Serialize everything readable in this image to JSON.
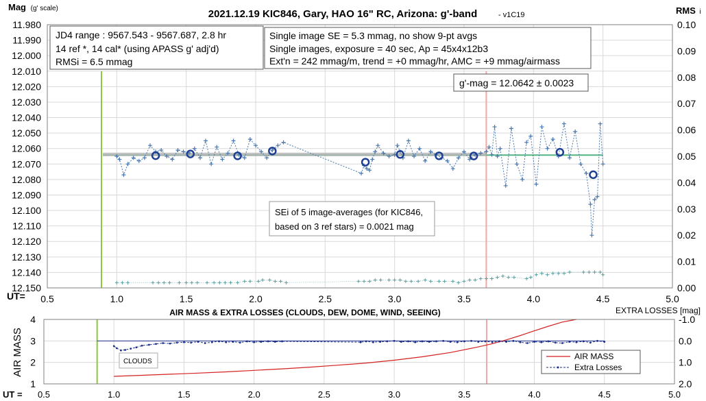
{
  "chart_data": [
    {
      "type": "scatter",
      "title": "2021.12.19 KIC846, Gary, HAO 16\" RC, Arizona: g'-band",
      "version": "- v1C19",
      "ylabel": "Mag",
      "ylabel_suffix": "(g' scale)",
      "y2label": "RMS",
      "y2label_suffix": "i",
      "xlabel": "UT=",
      "xlim": [
        0.5,
        5.0
      ],
      "xticks": [
        "0.5",
        "1.0",
        "1.5",
        "2.0",
        "2.5",
        "3.0",
        "3.5",
        "4.0",
        "4.5",
        "5.0"
      ],
      "ylim": [
        11.98,
        12.15
      ],
      "yticks": [
        "11.980",
        "11.990",
        "12.000",
        "12.010",
        "12.020",
        "12.030",
        "12.040",
        "12.050",
        "12.060",
        "12.070",
        "12.080",
        "12.090",
        "12.100",
        "12.110",
        "12.120",
        "12.130",
        "12.140",
        "12.150"
      ],
      "y2lim": [
        0.1,
        0.0
      ],
      "y2ticks": [
        "0.10",
        "0.09",
        "0.08",
        "0.07",
        "0.06",
        "0.05",
        "0.04",
        "0.03",
        "0.02",
        "0.01",
        "0.00"
      ],
      "info_box_1": [
        "JD4 range : 9567.543 - 9567.687,  2.8  hr",
        "14 ref *, 14 cal* (using APASS g' adj'd)",
        "RMSi = 6.5 mmag"
      ],
      "info_box_2": [
        "Single image SE = 5.3 mmag, no show  9-pt avgs",
        "Single images, exposure = 40 sec, Ap = 45x4x12b3",
        "Ext'n = 242 mmag/m, trend = +0 mmag/hr, AMC = +9 mmag/airmass"
      ],
      "gmag_label": "g'-mag = 12.0642 ± 0.0023",
      "sei_label": [
        "SEi of 5 image-averages (for KIC846,",
        "based on 3 ref stars) = 0.0021 mag"
      ],
      "vertical_markers": [
        {
          "x": 0.89,
          "color": "#8cc63f"
        },
        {
          "x": 3.66,
          "color": "#f4a6a6"
        }
      ],
      "reference_lines": [
        {
          "label": "",
          "y": 12.0642,
          "x_range": [
            0.9,
            4.5
          ],
          "color": "#50b482"
        },
        {
          "label": "",
          "y": 12.0638,
          "x_range": [
            0.9,
            3.66
          ],
          "color": "#b4b4b4"
        }
      ],
      "series": [
        {
          "type": "line-points",
          "color": "#4a78b0",
          "x": [
            1.0,
            1.02,
            1.05,
            1.08,
            1.12,
            1.16,
            1.2,
            1.24,
            1.28,
            1.32,
            1.36,
            1.4,
            1.44,
            1.48,
            1.52,
            1.56,
            1.6,
            1.64,
            1.68,
            1.72,
            1.76,
            1.8,
            1.84,
            1.88,
            1.92,
            1.96,
            2.0,
            2.04,
            2.08,
            2.12,
            2.16,
            2.2,
            2.76,
            2.78,
            2.8,
            2.82,
            2.84,
            2.86,
            2.88,
            2.92,
            2.96,
            3.0,
            3.02,
            3.04,
            3.06,
            3.1,
            3.14,
            3.18,
            3.22,
            3.26,
            3.3,
            3.34,
            3.38,
            3.42,
            3.46,
            3.5,
            3.54,
            3.58,
            3.62,
            3.66,
            3.68,
            3.7,
            3.72,
            3.74,
            3.76,
            3.8,
            3.84,
            3.88,
            3.92,
            3.95,
            3.98,
            4.02,
            4.06,
            4.1,
            4.14,
            4.18,
            4.22,
            4.26,
            4.3,
            4.34,
            4.38,
            4.41,
            4.42,
            4.44,
            4.46,
            4.48,
            4.5
          ],
          "y": [
            12.065,
            12.067,
            12.077,
            12.07,
            12.066,
            12.068,
            12.066,
            12.058,
            12.062,
            12.061,
            12.065,
            12.067,
            12.061,
            12.062,
            12.063,
            12.06,
            12.066,
            12.055,
            12.07,
            12.059,
            12.067,
            12.063,
            12.055,
            12.064,
            12.066,
            12.054,
            12.058,
            12.062,
            12.066,
            12.061,
            12.058,
            12.056,
            12.076,
            12.071,
            12.073,
            12.074,
            12.067,
            12.062,
            12.058,
            12.063,
            12.065,
            12.064,
            12.058,
            12.062,
            12.066,
            12.055,
            12.065,
            12.06,
            12.068,
            12.062,
            12.064,
            12.066,
            12.068,
            12.073,
            12.066,
            12.062,
            12.067,
            12.064,
            12.063,
            12.062,
            12.059,
            12.064,
            12.046,
            12.065,
            12.06,
            12.084,
            12.047,
            12.07,
            12.08,
            12.056,
            12.052,
            12.083,
            12.046,
            12.06,
            12.054,
            12.065,
            12.044,
            12.066,
            12.049,
            12.07,
            12.076,
            12.096,
            12.116,
            12.093,
            12.091,
            12.044,
            12.07
          ]
        },
        {
          "type": "circles",
          "color": "#1c3f94",
          "x": [
            1.28,
            1.53,
            1.87,
            2.12,
            2.79,
            3.04,
            3.32,
            3.57,
            4.19,
            4.43
          ],
          "y": [
            12.0646,
            12.0635,
            12.0647,
            12.0616,
            12.0688,
            12.0638,
            12.0647,
            12.0648,
            12.0624,
            12.0769
          ]
        },
        {
          "type": "rmsi-points",
          "color": "#5a9ea0",
          "x": [
            1.0,
            1.04,
            1.08,
            1.26,
            1.3,
            1.34,
            1.38,
            1.45,
            1.5,
            1.54,
            1.58,
            1.65,
            1.7,
            1.74,
            1.78,
            1.82,
            1.87,
            1.92,
            1.96,
            2.02,
            2.05,
            2.1,
            2.14,
            2.18,
            2.22,
            2.74,
            2.78,
            2.82,
            2.86,
            2.9,
            2.96,
            3.0,
            3.04,
            3.08,
            3.12,
            3.17,
            3.22,
            3.26,
            3.32,
            3.36,
            3.42,
            3.46,
            3.5,
            3.54,
            3.58,
            3.62,
            3.66,
            3.7,
            3.74,
            3.78,
            3.82,
            3.86,
            3.95,
            3.98,
            4.02,
            4.06,
            4.1,
            4.14,
            4.18,
            4.22,
            4.26,
            4.36,
            4.4,
            4.44,
            4.48,
            4.5
          ],
          "y": [
            0.002,
            0.002,
            0.002,
            0.002,
            0.002,
            0.002,
            0.002,
            0.002,
            0.002,
            0.002,
            0.002,
            0.002,
            0.002,
            0.002,
            0.002,
            0.002,
            0.002,
            0.0025,
            0.0025,
            0.0025,
            0.003,
            0.003,
            0.0025,
            0.0025,
            0.002,
            0.0025,
            0.0025,
            0.0025,
            0.003,
            0.003,
            0.003,
            0.003,
            0.003,
            0.0025,
            0.0025,
            0.0025,
            0.003,
            0.0025,
            0.0025,
            0.0025,
            0.0025,
            0.002,
            0.0025,
            0.003,
            0.003,
            0.0035,
            0.0035,
            0.0035,
            0.004,
            0.0045,
            0.004,
            0.004,
            0.0035,
            0.004,
            0.005,
            0.0055,
            0.005,
            0.0055,
            0.0055,
            0.0055,
            0.006,
            0.006,
            0.006,
            0.006,
            0.006,
            0.005
          ]
        }
      ]
    },
    {
      "type": "line",
      "title": "AIR MASS & EXTRA LOSSES (CLOUDS, DEW, DOME, WIND, SEEING)",
      "ylabel": "AIR MASS",
      "y2label": "EXTRA LOSSES [mag]",
      "xlabel": "UT =",
      "xlim": [
        0.5,
        5.0
      ],
      "xticks": [
        "0.5",
        "1.0",
        "1.5",
        "2.0",
        "2.5",
        "3.0",
        "3.5",
        "4.0",
        "4.5",
        "5.0"
      ],
      "ylim": [
        1,
        4
      ],
      "yticks": [
        "4",
        "3",
        "2",
        "1"
      ],
      "y2lim": [
        -1.0,
        2.0
      ],
      "y2ticks": [
        "-1.0",
        "0.0",
        "1.0",
        "2.0"
      ],
      "clouds_label": "CLOUDS",
      "vertical_markers": [
        {
          "x": 0.88,
          "color": "#8cc63f"
        },
        {
          "x": 3.66,
          "color": "#f4a6a6"
        }
      ],
      "reference_lines": [
        {
          "label": "",
          "y2": 0.0,
          "x_range": [
            0.88,
            4.5
          ],
          "color": "#1c2f8a"
        }
      ],
      "series": [
        {
          "name": "AIR MASS",
          "color": "#d42020",
          "x": [
            1.0,
            1.2,
            1.4,
            1.6,
            1.8,
            2.0,
            2.2,
            2.4,
            2.6,
            2.8,
            3.0,
            3.2,
            3.4,
            3.6,
            3.7,
            3.8,
            3.9,
            4.0,
            4.1,
            4.2,
            4.3
          ],
          "y": [
            1.35,
            1.4,
            1.45,
            1.5,
            1.56,
            1.63,
            1.7,
            1.78,
            1.87,
            1.97,
            2.1,
            2.26,
            2.46,
            2.72,
            2.87,
            3.05,
            3.25,
            3.47,
            3.68,
            3.88,
            4.0
          ]
        },
        {
          "name": "Extra Losses",
          "color": "#1c2f8a",
          "x": [
            1.0,
            1.02,
            1.05,
            1.08,
            1.12,
            1.16,
            1.2,
            1.25,
            1.3,
            1.35,
            1.4,
            1.45,
            1.5,
            1.55,
            1.6,
            1.65,
            1.7,
            1.75,
            1.8,
            1.85,
            1.9,
            1.95,
            2.0,
            2.05,
            2.1,
            2.15,
            2.2,
            2.76,
            2.8,
            2.85,
            2.9,
            2.95,
            3.0,
            3.05,
            3.1,
            3.15,
            3.2,
            3.25,
            3.3,
            3.35,
            3.4,
            3.45,
            3.5,
            3.55,
            3.6,
            3.65,
            3.7,
            3.75,
            3.8,
            3.85,
            3.9,
            3.95,
            4.0,
            4.05,
            4.1,
            4.15,
            4.2,
            4.25,
            4.3,
            4.35,
            4.4,
            4.45,
            4.5
          ],
          "y": [
            0.24,
            0.34,
            0.44,
            0.42,
            0.36,
            0.3,
            0.22,
            0.18,
            0.14,
            0.1,
            0.12,
            0.08,
            0.06,
            0.08,
            0.04,
            0.1,
            0.06,
            0.02,
            0.06,
            0.04,
            0.08,
            0.02,
            0.06,
            0.04,
            0.02,
            0.04,
            0.02,
            0.06,
            0.02,
            0.06,
            0.04,
            0.02,
            0.0,
            0.04,
            0.02,
            0.06,
            0.02,
            0.04,
            0.02,
            0.0,
            0.04,
            0.06,
            0.02,
            0.0,
            0.04,
            0.02,
            0.06,
            0.02,
            0.04,
            0.0,
            0.06,
            0.1,
            0.04,
            0.06,
            0.02,
            0.08,
            0.1,
            0.04,
            0.06,
            0.02,
            0.08,
            0.0,
            0.04
          ]
        }
      ]
    }
  ]
}
